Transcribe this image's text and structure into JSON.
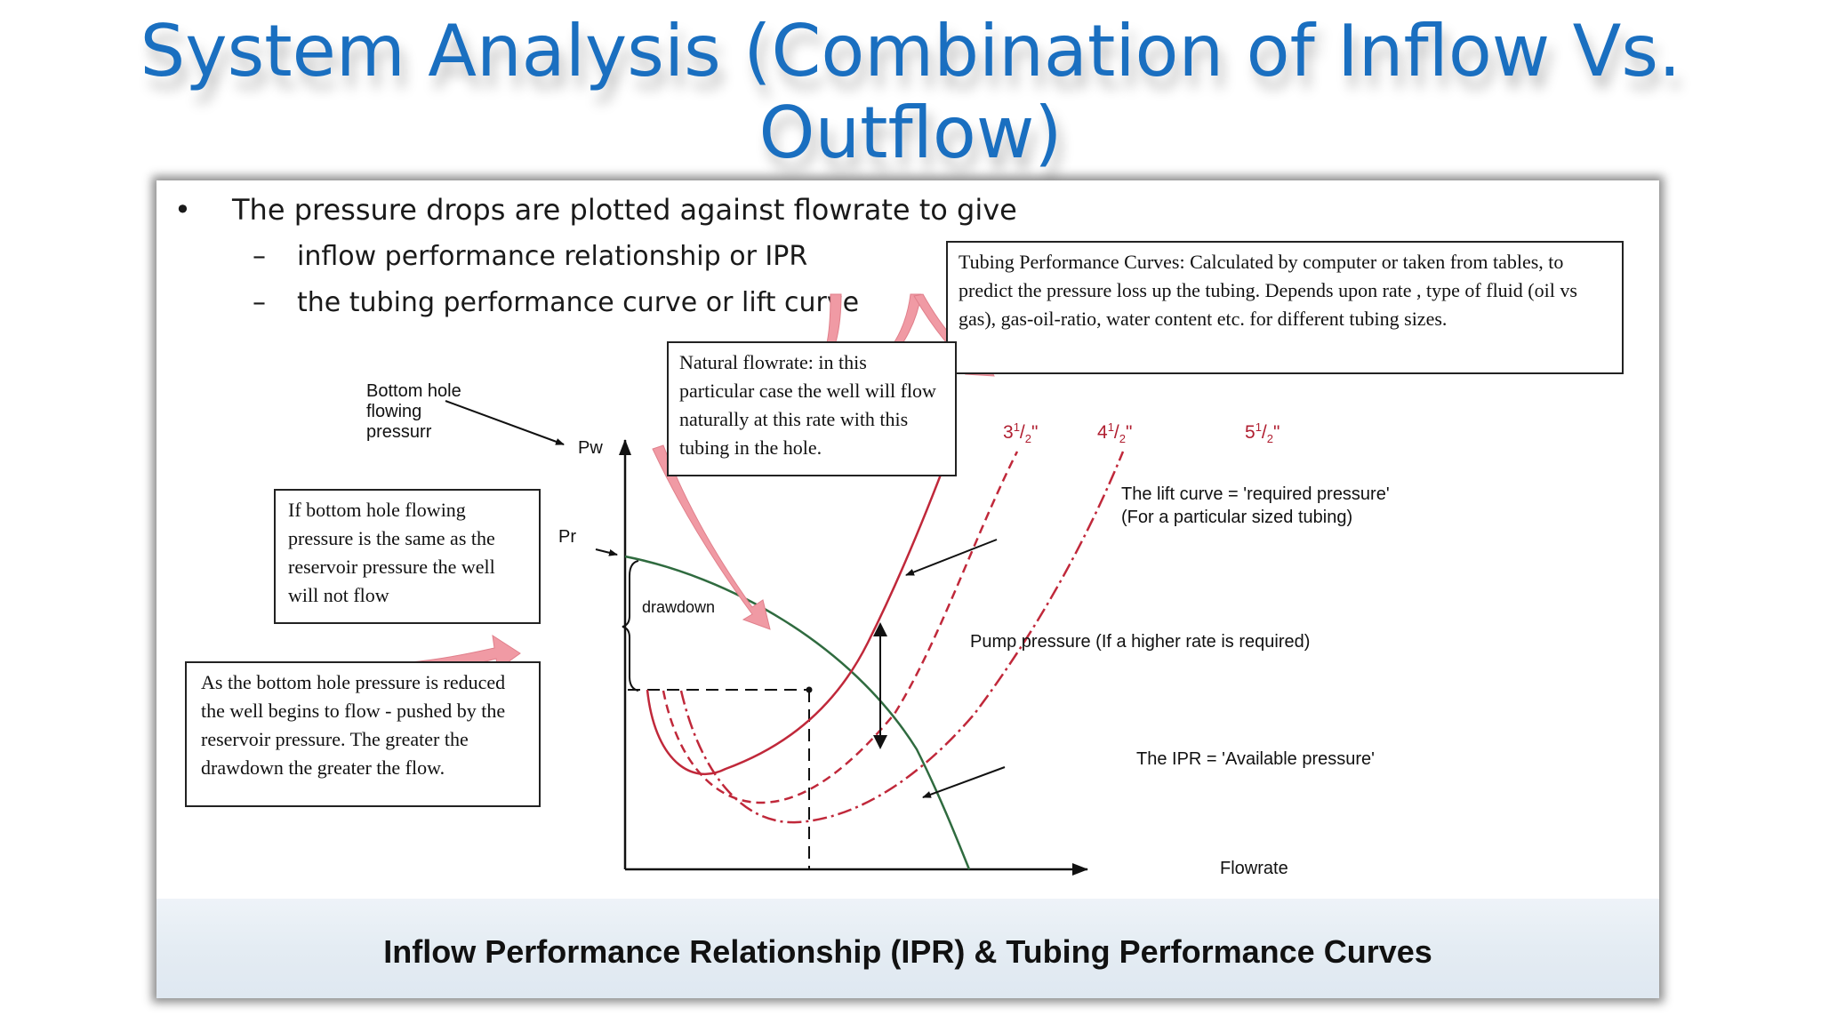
{
  "slide": {
    "title": "System Analysis (Combination of Inflow Vs. Outflow)"
  },
  "bullets": {
    "main": "The pressure drops are plotted against flowrate to give",
    "sub": [
      "inflow performance relationship or IPR",
      "the tubing performance curve or lift curve"
    ]
  },
  "annotations": {
    "tubing_performance": "Tubing Performance Curves: Calculated by computer or taken from tables, to predict the pressure loss up the tubing. Depends upon rate , type of fluid (oil vs gas), gas-oil-ratio, water content etc. for different tubing sizes.",
    "natural_flowrate": "Natural flowrate: in this particular case the well will flow naturally at this rate with this tubing in the hole.",
    "no_flow": "If bottom hole flowing pressure is the same as the reservoir pressure the well will not flow",
    "drawdown_flow": "As the bottom hole pressure is reduced the well begins to flow - pushed by the reservoir pressure. The greater the drawdown the greater the flow.",
    "bottom_hole_label": "Bottom hole flowing pressurr",
    "lift_curve_line1": "The lift curve = 'required pressure'",
    "lift_curve_line2": "(For a particular sized tubing)",
    "pump_pressure": "Pump pressure (If a higher rate is required)",
    "ipr_label": "The IPR = 'Available pressure'",
    "drawdown": "drawdown"
  },
  "axes": {
    "y_label": "Pw",
    "x_label": "Flowrate",
    "pr_label": "Pr"
  },
  "tubing_sizes": [
    {
      "whole": "3",
      "num": "1",
      "den": "2"
    },
    {
      "whole": "4",
      "num": "1",
      "den": "2"
    },
    {
      "whole": "5",
      "num": "1",
      "den": "2"
    }
  ],
  "caption": "Inflow Performance Relationship (IPR) & Tubing Performance Curves",
  "colors": {
    "title": "#1a6fc0",
    "ipr_curve": "#2f6b3f",
    "tubing_curves": "#c0283a",
    "callout_arrow": "#f09aa4"
  }
}
